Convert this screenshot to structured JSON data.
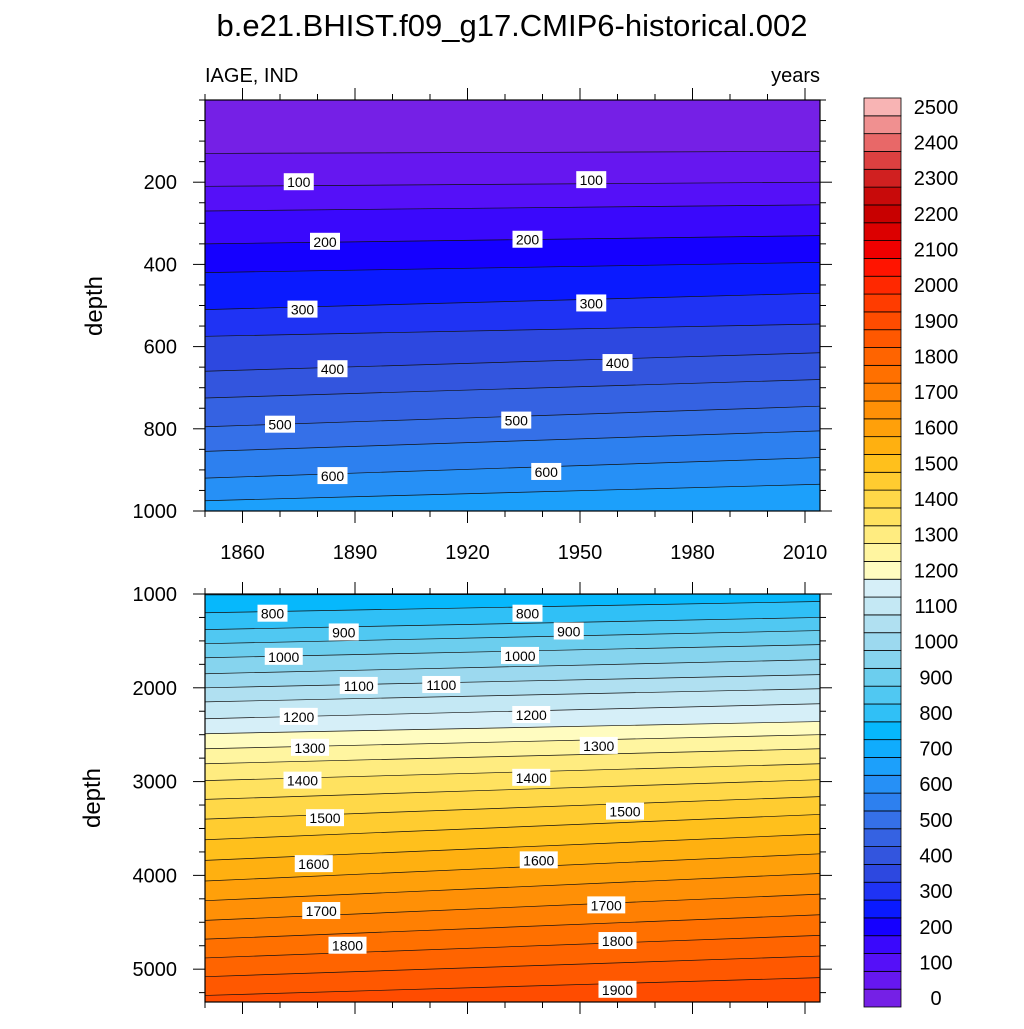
{
  "title": "b.e21.BHIST.f09_g17.CMIP6-historical.002",
  "chart_data": {
    "type": "heatmap",
    "variable_label": "IAGE, IND",
    "units_label": "years",
    "colorbar": {
      "levels": [
        0,
        50,
        100,
        150,
        200,
        250,
        300,
        350,
        400,
        450,
        500,
        550,
        600,
        650,
        700,
        750,
        800,
        850,
        900,
        950,
        1000,
        1050,
        1100,
        1150,
        1200,
        1250,
        1300,
        1350,
        1400,
        1450,
        1500,
        1550,
        1600,
        1650,
        1700,
        1750,
        1800,
        1850,
        1900,
        1950,
        2000,
        2050,
        2100,
        2150,
        2200,
        2250,
        2300,
        2350,
        2400,
        2450,
        2500,
        2550
      ],
      "tick_labels": [
        "0",
        "100",
        "200",
        "300",
        "400",
        "500",
        "600",
        "700",
        "800",
        "900",
        "1000",
        "1100",
        "1200",
        "1300",
        "1400",
        "1500",
        "1600",
        "1700",
        "1800",
        "1900",
        "2000",
        "2100",
        "2200",
        "2300",
        "2400",
        "2500"
      ],
      "colors": [
        "#7520e6",
        "#6617f0",
        "#5510f8",
        "#3a08fc",
        "#1500ff",
        "#0a1aff",
        "#1f33f4",
        "#2d48e0",
        "#3355de",
        "#3562e2",
        "#3570e8",
        "#2d80ef",
        "#2690f6",
        "#1ca0fb",
        "#10acfd",
        "#06b8fc",
        "#30c0f6",
        "#50c8f2",
        "#6cceee",
        "#86d4ee",
        "#9cd9ef",
        "#b0e0f1",
        "#c4e8f4",
        "#d6eff8",
        "#fffcc0",
        "#fff5a0",
        "#ffec80",
        "#ffe260",
        "#ffd848",
        "#ffcc30",
        "#ffc01c",
        "#ffb010",
        "#ffa00a",
        "#ff9006",
        "#ff8003",
        "#ff7000",
        "#ff6400",
        "#ff5800",
        "#ff4c00",
        "#ff3c00",
        "#ff2800",
        "#ff1400",
        "#f00000",
        "#dc0000",
        "#c80000",
        "#c80a0a",
        "#d02020",
        "#dc4040",
        "#e86868",
        "#f09090",
        "#f8b4b4"
      ]
    },
    "panels": [
      {
        "name": "upper-ocean",
        "ylabel": "depth",
        "ylim": [
          0,
          1000
        ],
        "yticks": [
          200,
          400,
          600,
          800,
          1000
        ],
        "ytick_labels": [
          "200",
          "400",
          "600",
          "800",
          "1000"
        ],
        "xlim": [
          1850,
          2014
        ],
        "xticks": [
          1860,
          1890,
          1920,
          1950,
          1980,
          2010
        ],
        "xtick_labels": [
          "1860",
          "1890",
          "1920",
          "1950",
          "1980",
          "2010"
        ],
        "contours": [
          {
            "level": 50,
            "depth_start": 130,
            "depth_end": 125
          },
          {
            "level": 100,
            "depth_start": 210,
            "depth_end": 200
          },
          {
            "level": 150,
            "depth_start": 270,
            "depth_end": 255
          },
          {
            "level": 200,
            "depth_start": 350,
            "depth_end": 330
          },
          {
            "level": 250,
            "depth_start": 420,
            "depth_end": 395
          },
          {
            "level": 300,
            "depth_start": 510,
            "depth_end": 470
          },
          {
            "level": 350,
            "depth_start": 575,
            "depth_end": 545
          },
          {
            "level": 400,
            "depth_start": 660,
            "depth_end": 615
          },
          {
            "level": 450,
            "depth_start": 725,
            "depth_end": 680
          },
          {
            "level": 500,
            "depth_start": 795,
            "depth_end": 745
          },
          {
            "level": 550,
            "depth_start": 855,
            "depth_end": 805
          },
          {
            "level": 600,
            "depth_start": 920,
            "depth_end": 870
          },
          {
            "level": 650,
            "depth_start": 975,
            "depth_end": 935
          }
        ],
        "contour_labels": [
          {
            "text": "100",
            "year": 1875,
            "depth": 200
          },
          {
            "text": "100",
            "year": 1953,
            "depth": 195
          },
          {
            "text": "200",
            "year": 1882,
            "depth": 345
          },
          {
            "text": "200",
            "year": 1936,
            "depth": 340
          },
          {
            "text": "300",
            "year": 1876,
            "depth": 510
          },
          {
            "text": "300",
            "year": 1953,
            "depth": 495
          },
          {
            "text": "400",
            "year": 1884,
            "depth": 655
          },
          {
            "text": "400",
            "year": 1960,
            "depth": 640
          },
          {
            "text": "500",
            "year": 1870,
            "depth": 790
          },
          {
            "text": "500",
            "year": 1933,
            "depth": 780
          },
          {
            "text": "600",
            "year": 1884,
            "depth": 915
          },
          {
            "text": "600",
            "year": 1941,
            "depth": 905
          }
        ]
      },
      {
        "name": "deep-ocean",
        "ylabel": "depth",
        "ylim": [
          1000,
          5350
        ],
        "yticks": [
          1000,
          2000,
          3000,
          4000,
          5000
        ],
        "ytick_labels": [
          "1000",
          "2000",
          "3000",
          "4000",
          "5000"
        ],
        "xlim": [
          1850,
          2014
        ],
        "contours": [
          {
            "level": 750,
            "depth_start": 1010,
            "depth_end": 1000
          },
          {
            "level": 800,
            "depth_start": 1200,
            "depth_end": 1080
          },
          {
            "level": 850,
            "depth_start": 1380,
            "depth_end": 1250
          },
          {
            "level": 900,
            "depth_start": 1530,
            "depth_end": 1390
          },
          {
            "level": 950,
            "depth_start": 1680,
            "depth_end": 1540
          },
          {
            "level": 1000,
            "depth_start": 1850,
            "depth_end": 1700
          },
          {
            "level": 1050,
            "depth_start": 2000,
            "depth_end": 1860
          },
          {
            "level": 1100,
            "depth_start": 2150,
            "depth_end": 2010
          },
          {
            "level": 1150,
            "depth_start": 2330,
            "depth_end": 2170
          },
          {
            "level": 1200,
            "depth_start": 2490,
            "depth_end": 2360
          },
          {
            "level": 1250,
            "depth_start": 2650,
            "depth_end": 2500
          },
          {
            "level": 1300,
            "depth_start": 2810,
            "depth_end": 2650
          },
          {
            "level": 1350,
            "depth_start": 2990,
            "depth_end": 2810
          },
          {
            "level": 1400,
            "depth_start": 3190,
            "depth_end": 2980
          },
          {
            "level": 1450,
            "depth_start": 3400,
            "depth_end": 3160
          },
          {
            "level": 1500,
            "depth_start": 3620,
            "depth_end": 3350
          },
          {
            "level": 1550,
            "depth_start": 3840,
            "depth_end": 3560
          },
          {
            "level": 1600,
            "depth_start": 4060,
            "depth_end": 3770
          },
          {
            "level": 1650,
            "depth_start": 4270,
            "depth_end": 3980
          },
          {
            "level": 1700,
            "depth_start": 4480,
            "depth_end": 4200
          },
          {
            "level": 1750,
            "depth_start": 4680,
            "depth_end": 4420
          },
          {
            "level": 1800,
            "depth_start": 4880,
            "depth_end": 4640
          },
          {
            "level": 1850,
            "depth_start": 5080,
            "depth_end": 4860
          },
          {
            "level": 1900,
            "depth_start": 5280,
            "depth_end": 5090
          }
        ],
        "contour_labels": [
          {
            "text": "800",
            "year": 1868,
            "depth": 1210
          },
          {
            "text": "800",
            "year": 1936,
            "depth": 1210
          },
          {
            "text": "900",
            "year": 1887,
            "depth": 1410
          },
          {
            "text": "900",
            "year": 1947,
            "depth": 1400
          },
          {
            "text": "1000",
            "year": 1871,
            "depth": 1670
          },
          {
            "text": "1000",
            "year": 1934,
            "depth": 1660
          },
          {
            "text": "1100",
            "year": 1891,
            "depth": 1980
          },
          {
            "text": "1100",
            "year": 1913,
            "depth": 1970
          },
          {
            "text": "1200",
            "year": 1875,
            "depth": 2310
          },
          {
            "text": "1200",
            "year": 1937,
            "depth": 2290
          },
          {
            "text": "1300",
            "year": 1878,
            "depth": 2640
          },
          {
            "text": "1300",
            "year": 1955,
            "depth": 2620
          },
          {
            "text": "1400",
            "year": 1876,
            "depth": 2990
          },
          {
            "text": "1400",
            "year": 1937,
            "depth": 2960
          },
          {
            "text": "1500",
            "year": 1882,
            "depth": 3390
          },
          {
            "text": "1500",
            "year": 1962,
            "depth": 3320
          },
          {
            "text": "1600",
            "year": 1879,
            "depth": 3880
          },
          {
            "text": "1600",
            "year": 1939,
            "depth": 3840
          },
          {
            "text": "1700",
            "year": 1881,
            "depth": 4380
          },
          {
            "text": "1700",
            "year": 1957,
            "depth": 4320
          },
          {
            "text": "1800",
            "year": 1888,
            "depth": 4750
          },
          {
            "text": "1800",
            "year": 1960,
            "depth": 4700
          },
          {
            "text": "1900",
            "year": 1960,
            "depth": 5220
          }
        ]
      }
    ]
  }
}
